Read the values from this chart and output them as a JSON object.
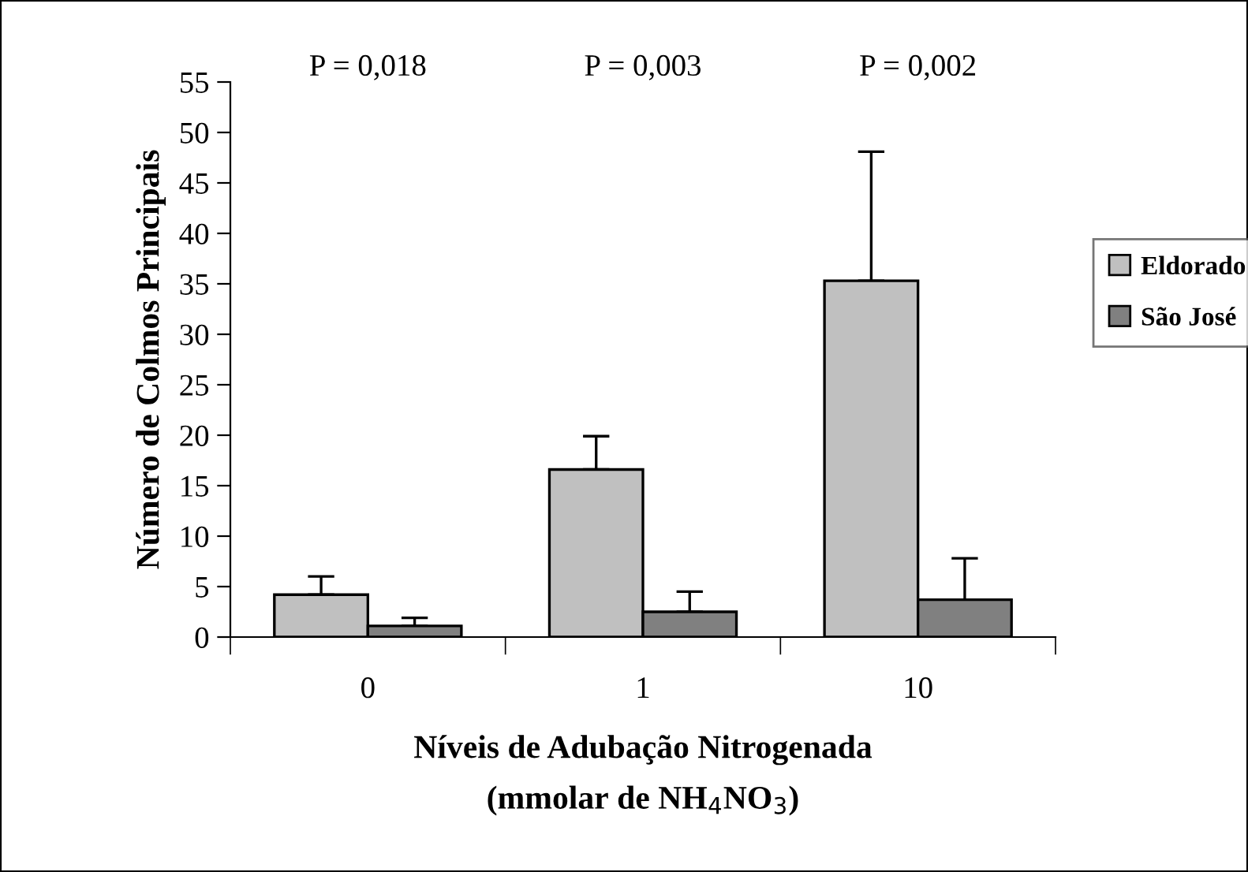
{
  "chart_data": {
    "type": "bar",
    "xlabel": "Níveis de Adubação Nitrogenada\n(mmolar de NH$_{4}$NO$_{3}$)",
    "ylabel": "Número de Colmos Principais",
    "categories": [
      "0",
      "1",
      "10"
    ],
    "series": [
      {
        "name": "Eldorado",
        "color": "#c0c0c0",
        "values": [
          4.2,
          16.6,
          35.3
        ],
        "errors": [
          [
            4.2,
            6.0
          ],
          [
            16.6,
            19.9
          ],
          [
            35.3,
            48.1
          ]
        ]
      },
      {
        "name": "São José",
        "color": "#808080",
        "values": [
          1.1,
          2.5,
          3.7
        ],
        "errors": [
          [
            1.1,
            1.9
          ],
          [
            2.5,
            4.5
          ],
          [
            3.7,
            7.8
          ]
        ]
      }
    ],
    "ylim": [
      0,
      55
    ],
    "yticks": [
      0,
      5,
      10,
      15,
      20,
      25,
      30,
      35,
      40,
      45,
      50,
      55
    ],
    "annotations": [
      "P = 0,018",
      "P = 0,003",
      "P = 0,002"
    ],
    "legend": "right",
    "grid": false
  }
}
